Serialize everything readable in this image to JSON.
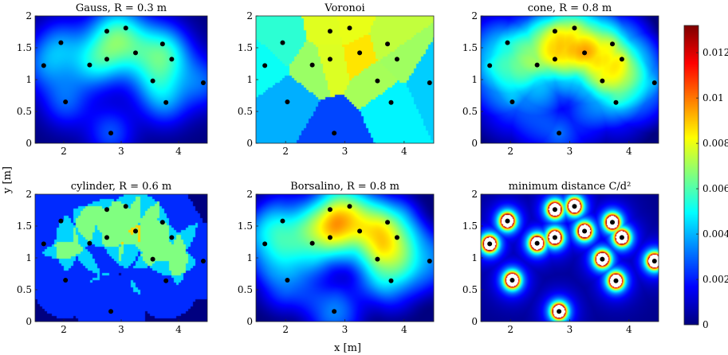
{
  "figure": {
    "ylabel": "y [m]",
    "xlabel": "x [m]"
  },
  "chart_data": [
    {
      "type": "heatmap",
      "title": "Gauss, R = 0.3 m",
      "method": "gauss",
      "xlim": [
        1.5,
        4.5
      ],
      "ylim": [
        0,
        2
      ],
      "xticks": [
        2,
        3,
        4
      ],
      "yticks": [
        0,
        0.5,
        1,
        1.5,
        2
      ],
      "xticklabels": [
        "2",
        "3",
        "4"
      ],
      "yticklabels": [
        "0",
        "0.5",
        "1",
        "1.5",
        "2"
      ],
      "grid": false
    },
    {
      "type": "heatmap",
      "title": "Voronoi",
      "method": "voronoi",
      "xlim": [
        1.5,
        4.5
      ],
      "ylim": [
        0,
        2
      ],
      "xticks": [
        2,
        3,
        4
      ],
      "yticks": [
        0,
        0.5,
        1,
        1.5,
        2
      ],
      "xticklabels": [
        "2",
        "3",
        "4"
      ],
      "yticklabels": [
        "0",
        "0.5",
        "1",
        "1.5",
        "2"
      ],
      "grid": false
    },
    {
      "type": "heatmap",
      "title": "cone, R = 0.8 m",
      "method": "cone",
      "xlim": [
        1.5,
        4.5
      ],
      "ylim": [
        0,
        2
      ],
      "xticks": [
        2,
        3,
        4
      ],
      "yticks": [
        0,
        0.5,
        1,
        1.5,
        2
      ],
      "xticklabels": [
        "2",
        "3",
        "4"
      ],
      "yticklabels": [
        "0",
        "0.5",
        "1",
        "1.5",
        "2"
      ],
      "grid": false
    },
    {
      "type": "heatmap",
      "title": "cylinder, R = 0.6 m",
      "method": "cylinder",
      "xlim": [
        1.5,
        4.5
      ],
      "ylim": [
        0,
        2
      ],
      "xticks": [
        2,
        3,
        4
      ],
      "yticks": [
        0,
        0.5,
        1,
        1.5,
        2
      ],
      "xticklabels": [
        "2",
        "3",
        "4"
      ],
      "yticklabels": [
        "0",
        "0.5",
        "1",
        "1.5",
        "2"
      ],
      "grid": false
    },
    {
      "type": "heatmap",
      "title": "Borsalino, R = 0.8 m",
      "method": "borsalino",
      "xlim": [
        1.5,
        4.5
      ],
      "ylim": [
        0,
        2
      ],
      "xticks": [
        2,
        3,
        4
      ],
      "yticks": [
        0,
        0.5,
        1,
        1.5,
        2
      ],
      "xticklabels": [
        "2",
        "3",
        "4"
      ],
      "yticklabels": [
        "0",
        "0.5",
        "1",
        "1.5",
        "2"
      ],
      "grid": false
    },
    {
      "type": "heatmap",
      "title": "minimum distance C/d²",
      "method": "mindist",
      "xlim": [
        1.5,
        4.5
      ],
      "ylim": [
        0,
        2
      ],
      "xticks": [
        2,
        3,
        4
      ],
      "yticks": [
        0,
        0.5,
        1,
        1.5,
        2
      ],
      "xticklabels": [
        "2",
        "3",
        "4"
      ],
      "yticklabels": [
        "0",
        "0.5",
        "1",
        "1.5",
        "2"
      ],
      "grid": false
    }
  ],
  "points": [
    {
      "x": 1.65,
      "y": 1.22
    },
    {
      "x": 1.95,
      "y": 1.58
    },
    {
      "x": 2.03,
      "y": 0.65
    },
    {
      "x": 2.45,
      "y": 1.23
    },
    {
      "x": 2.75,
      "y": 1.76
    },
    {
      "x": 2.75,
      "y": 1.32
    },
    {
      "x": 2.82,
      "y": 0.16
    },
    {
      "x": 3.08,
      "y": 1.81
    },
    {
      "x": 3.25,
      "y": 1.42
    },
    {
      "x": 3.55,
      "y": 0.98
    },
    {
      "x": 3.72,
      "y": 1.56
    },
    {
      "x": 3.78,
      "y": 0.64
    },
    {
      "x": 3.88,
      "y": 1.32
    },
    {
      "x": 4.43,
      "y": 0.95
    }
  ],
  "colorbar": {
    "colormap": "jet",
    "min": 0,
    "max": 0.0132,
    "ticks": [
      0,
      0.002,
      0.004,
      0.006,
      0.008,
      0.01,
      0.012
    ],
    "ticklabels": [
      "0",
      "0.002",
      "0.004",
      "0.006",
      "0.008",
      "0.01",
      "0.012"
    ]
  },
  "colors": {
    "marker": "#000000",
    "marker_highlight": "#ffffff",
    "background": "#ffffff"
  }
}
